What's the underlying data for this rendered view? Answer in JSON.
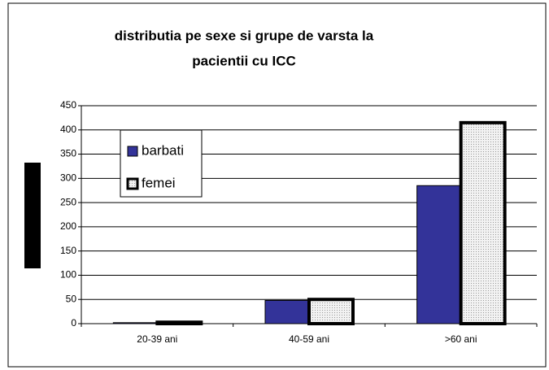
{
  "chart_data": {
    "type": "bar",
    "title": [
      "distributia pe sexe si grupe de varsta la",
      "pacientii cu ICC"
    ],
    "categories": [
      "20-39 ani",
      "40-59 ani",
      ">60 ani"
    ],
    "series": [
      {
        "name": "barbati",
        "color": "#333399",
        "values": [
          2,
          48,
          285
        ]
      },
      {
        "name": "femei",
        "color": "#e6e6e6",
        "values": [
          3,
          50,
          415
        ]
      }
    ],
    "ylim": [
      0,
      450
    ],
    "yticks": [
      0,
      50,
      100,
      150,
      200,
      250,
      300,
      350,
      400,
      450
    ],
    "grid": true
  }
}
